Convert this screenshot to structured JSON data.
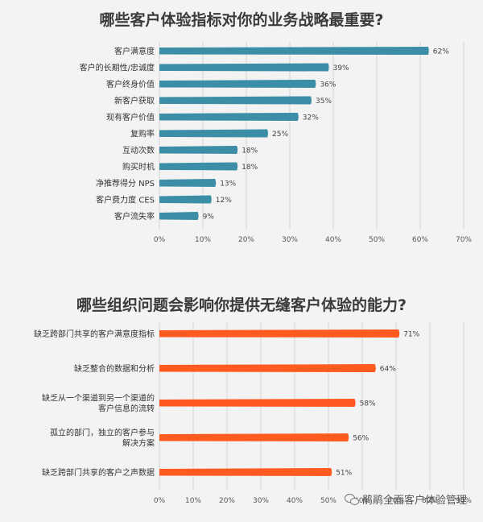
{
  "chart_data": [
    {
      "type": "bar",
      "orientation": "horizontal",
      "title": "哪些客户体验指标对你的业务战略最重要?",
      "categories": [
        "客户满意度",
        "客户的长期性/忠诚度",
        "客户终身价值",
        "新客户获取",
        "现有客户价值",
        "复购率",
        "互动次数",
        "购买时机",
        "净推荐得分 NPS",
        "客户费力度 CES",
        "客户流失率"
      ],
      "values": [
        62,
        39,
        36,
        35,
        32,
        25,
        18,
        18,
        13,
        12,
        9
      ],
      "value_labels": [
        "62%",
        "39%",
        "36%",
        "35%",
        "32%",
        "25%",
        "18%",
        "18%",
        "13%",
        "12%",
        "9%"
      ],
      "xlim": [
        0,
        70
      ],
      "ticks": [
        "0%",
        "10%",
        "20%",
        "30%",
        "40%",
        "50%",
        "60%",
        "70%"
      ],
      "color": "#3b8ea5",
      "grid": true
    },
    {
      "type": "bar",
      "orientation": "horizontal",
      "title": "哪些组织问题会影响你提供无缝客户体验的能力?",
      "categories": [
        [
          "缺乏跨部门共享的客户满意度指标"
        ],
        [
          "缺乏整合的数据和分析"
        ],
        [
          "缺乏从一个渠道到另一个渠道的",
          "客户信息的流转"
        ],
        [
          "孤立的部门，独立的客户参与",
          "解决方案"
        ],
        [
          "缺乏跨部门共享的客户之声数据"
        ]
      ],
      "values": [
        71,
        64,
        58,
        56,
        51
      ],
      "value_labels": [
        "71%",
        "64%",
        "58%",
        "56%",
        "51%"
      ],
      "xlim": [
        0,
        90
      ],
      "ticks": [
        "0%",
        "10%",
        "20%",
        "30%",
        "40%",
        "50%",
        "60%",
        "70%",
        "80%",
        "90%"
      ],
      "color": "#ff5a1f",
      "grid": true
    }
  ],
  "watermark": "鹃鹃全面客户体验管理",
  "watermark_icon": "wechat-icon"
}
